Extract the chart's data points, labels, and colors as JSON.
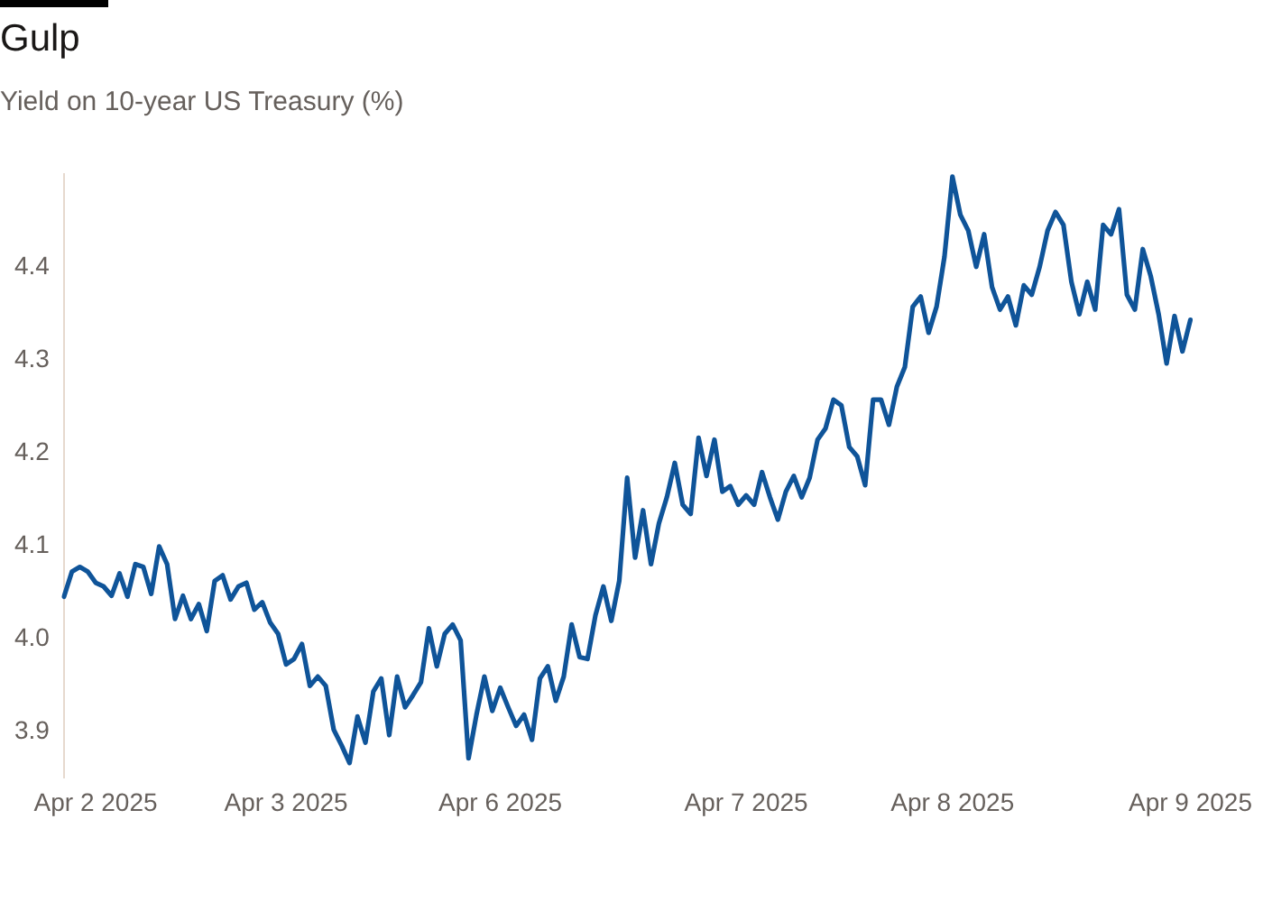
{
  "chart_data": {
    "type": "line",
    "title": "Gulp",
    "subtitle": "Yield on 10-year US Treasury (%)",
    "categories": [
      null,
      null,
      null,
      null,
      "Apr 2 2025",
      null,
      null,
      null,
      null,
      null,
      null,
      null,
      null,
      null,
      null,
      null,
      null,
      null,
      null,
      null,
      null,
      null,
      null,
      null,
      null,
      null,
      null,
      null,
      "Apr 3 2025",
      null,
      null,
      null,
      null,
      null,
      null,
      null,
      null,
      null,
      null,
      null,
      null,
      null,
      null,
      null,
      null,
      null,
      null,
      null,
      null,
      null,
      null,
      null,
      null,
      null,
      null,
      "Apr 6 2025",
      null,
      null,
      null,
      null,
      null,
      null,
      null,
      null,
      null,
      null,
      null,
      null,
      null,
      null,
      null,
      null,
      null,
      null,
      null,
      null,
      null,
      null,
      null,
      null,
      null,
      null,
      null,
      null,
      null,
      null,
      "Apr 7 2025",
      null,
      null,
      null,
      null,
      null,
      null,
      null,
      null,
      null,
      null,
      null,
      null,
      null,
      null,
      null,
      null,
      null,
      null,
      null,
      null,
      null,
      null,
      null,
      null,
      null,
      "Apr 8 2025",
      null,
      null,
      null,
      null,
      null,
      null,
      null,
      null,
      null,
      null,
      null,
      null,
      null,
      null,
      null,
      null,
      null,
      null,
      null,
      null,
      null,
      null,
      null,
      null,
      null,
      null,
      null,
      null,
      null,
      "Apr 9 2025"
    ],
    "ylim": [
      3.85,
      4.5
    ],
    "yticks": [
      3.9,
      {
        "value": 4.0,
        "label": "4.0"
      },
      4.1,
      4.2,
      4.3,
      4.4
    ],
    "grid": false,
    "legend": false,
    "marker": "none",
    "line_style": "solid",
    "series": [
      {
        "color": "#0f5499",
        "values": [
          4.045,
          4.072,
          4.077,
          4.072,
          4.06,
          4.056,
          4.046,
          4.07,
          4.045,
          4.08,
          4.077,
          4.048,
          4.099,
          4.08,
          4.021,
          4.046,
          4.021,
          4.037,
          4.008,
          4.062,
          4.068,
          4.042,
          4.056,
          4.06,
          4.031,
          4.039,
          4.017,
          4.005,
          3.972,
          3.978,
          3.994,
          3.949,
          3.959,
          3.949,
          3.902,
          3.885,
          3.866,
          3.916,
          3.888,
          3.943,
          3.957,
          3.896,
          3.959,
          3.926,
          3.939,
          3.953,
          4.011,
          3.97,
          4.005,
          4.015,
          3.998,
          3.871,
          3.918,
          3.959,
          3.922,
          3.947,
          3.926,
          3.906,
          3.918,
          3.891,
          3.957,
          3.97,
          3.933,
          3.959,
          4.015,
          3.98,
          3.978,
          4.025,
          4.056,
          4.019,
          4.062,
          4.173,
          4.087,
          4.138,
          4.08,
          4.124,
          4.152,
          4.189,
          4.144,
          4.134,
          4.216,
          4.175,
          4.214,
          4.158,
          4.164,
          4.144,
          4.154,
          4.144,
          4.179,
          4.152,
          4.128,
          4.158,
          4.175,
          4.152,
          4.173,
          4.214,
          4.226,
          4.257,
          4.251,
          4.206,
          4.196,
          4.165,
          4.257,
          4.257,
          4.23,
          4.271,
          4.292,
          4.357,
          4.368,
          4.329,
          4.357,
          4.411,
          4.497,
          4.456,
          4.439,
          4.4,
          4.435,
          4.378,
          4.354,
          4.368,
          4.337,
          4.38,
          4.37,
          4.4,
          4.439,
          4.459,
          4.445,
          4.384,
          4.349,
          4.384,
          4.354,
          4.445,
          4.435,
          4.462,
          4.37,
          4.354,
          4.419,
          4.39,
          4.349,
          4.296,
          4.347,
          4.309,
          4.343
        ]
      }
    ]
  }
}
